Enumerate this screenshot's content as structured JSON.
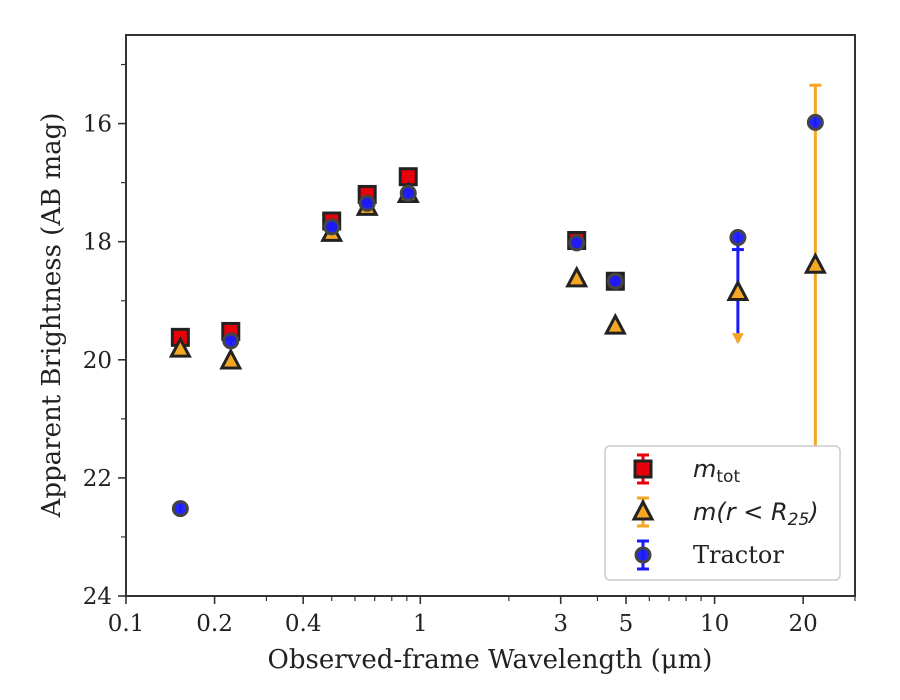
{
  "chart_data": {
    "type": "scatter",
    "xlabel": "Observed-frame Wavelength (μm)",
    "ylabel": "Apparent Brightness (AB mag)",
    "xscale": "log",
    "xlim": [
      0.1,
      30
    ],
    "ylim": [
      24,
      14.5
    ],
    "y_inverted": true,
    "x_ticks": [
      0.1,
      0.2,
      0.4,
      1,
      3,
      5,
      10,
      20
    ],
    "x_tick_labels": [
      "0.1",
      "0.2",
      "0.4",
      "1",
      "3",
      "5",
      "10",
      "20"
    ],
    "y_ticks": [
      16,
      18,
      20,
      22,
      24
    ],
    "y_tick_labels": [
      "16",
      "18",
      "20",
      "22",
      "24"
    ],
    "legend": {
      "placement": "lower-right",
      "entries": [
        {
          "series": "m_tot",
          "label_main": "m",
          "label_sub": "tot"
        },
        {
          "series": "m_r25",
          "label_text": "m(r < R",
          "label_sub": "25",
          "label_close": ")"
        },
        {
          "series": "tractor",
          "label_text": "Tractor"
        }
      ]
    },
    "series": [
      {
        "key": "m_tot",
        "marker": "square",
        "color": "#e8000b",
        "edge": "#222222",
        "points": [
          {
            "x": 0.153,
            "y": 19.62
          },
          {
            "x": 0.227,
            "y": 19.52
          },
          {
            "x": 0.5,
            "y": 17.65
          },
          {
            "x": 0.66,
            "y": 17.2
          },
          {
            "x": 0.91,
            "y": 16.9
          },
          {
            "x": 3.4,
            "y": 17.98
          },
          {
            "x": 4.6,
            "y": 18.67
          }
        ]
      },
      {
        "key": "m_r25",
        "marker": "triangle",
        "color": "#f5a623",
        "edge": "#222222",
        "points": [
          {
            "x": 0.153,
            "y": 19.82
          },
          {
            "x": 0.227,
            "y": 20.02
          },
          {
            "x": 0.5,
            "y": 17.86
          },
          {
            "x": 0.66,
            "y": 17.42
          },
          {
            "x": 0.91,
            "y": 17.2
          },
          {
            "x": 3.4,
            "y": 18.63
          },
          {
            "x": 4.6,
            "y": 19.43
          },
          {
            "x": 12.0,
            "y": 18.86
          },
          {
            "x": 22.0,
            "y": 18.4,
            "err_low": 15.35,
            "err_high": 21.5
          }
        ]
      },
      {
        "key": "tractor",
        "marker": "circle",
        "color": "#1a1aff",
        "edge": "#444444",
        "points": [
          {
            "x": 0.153,
            "y": 22.52
          },
          {
            "x": 0.227,
            "y": 19.68
          },
          {
            "x": 0.5,
            "y": 17.75
          },
          {
            "x": 0.66,
            "y": 17.35
          },
          {
            "x": 0.91,
            "y": 17.18
          },
          {
            "x": 3.4,
            "y": 18.02
          },
          {
            "x": 4.6,
            "y": 18.67
          },
          {
            "x": 12.0,
            "y": 17.93,
            "upper_limit_to": 19.7
          },
          {
            "x": 22.0,
            "y": 15.98
          }
        ]
      }
    ]
  }
}
